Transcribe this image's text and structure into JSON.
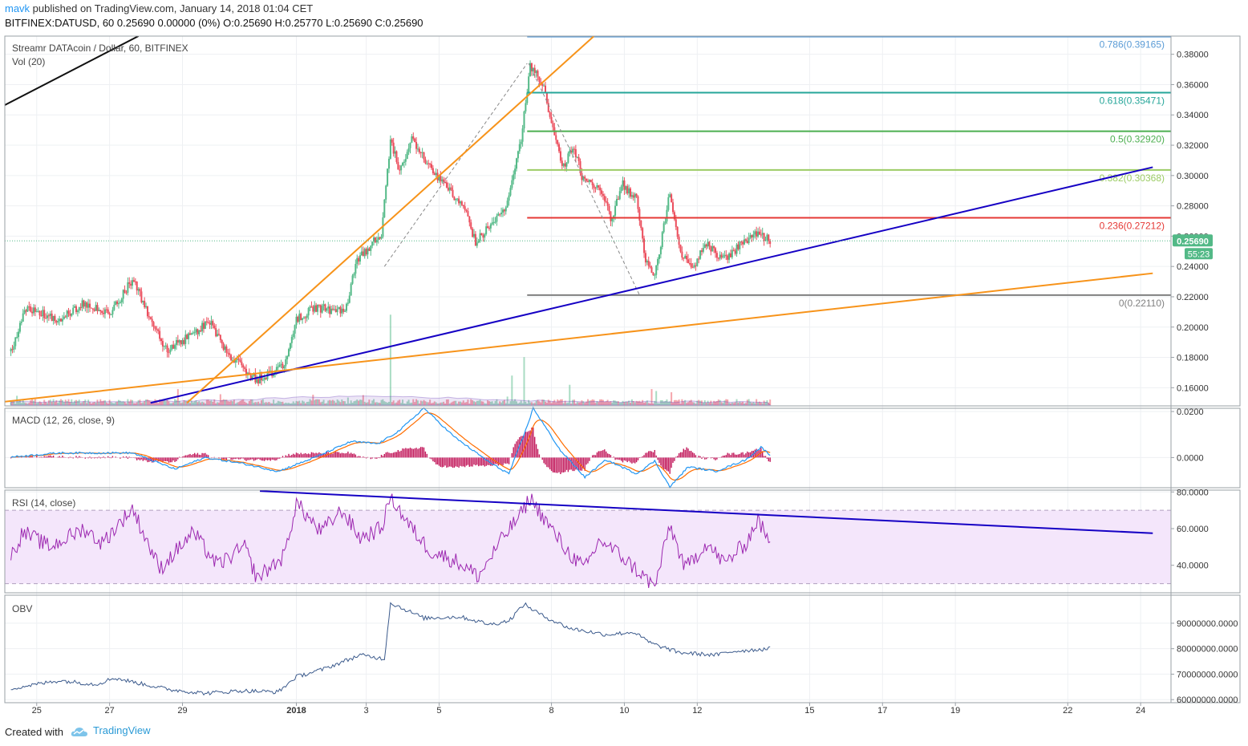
{
  "header": {
    "author": "mavk",
    "published": " published on TradingView.com, January 14, 2018 01:04 CET",
    "ohlc": "BITFINEX:DATUSD, 60  0.25690 0.00000 (0%) O:0.25690 H:0.25770 L:0.25690 C:0.25690"
  },
  "footer": {
    "created_with": "Created with",
    "brand": "TradingView",
    "brand_icon": "tradingview-cloud-icon"
  },
  "colors": {
    "up": "#53b987",
    "down": "#eb4d5c",
    "macd": "#2196f3",
    "signal": "#ff6d00",
    "hist": "#c2185b",
    "rsi": "#9c27b0",
    "rsi_band": "#f4e6fb",
    "obv": "#3b5a8c",
    "trend_blue": "#1500c4",
    "trend_orange": "#f7931a"
  },
  "chart_data": [
    {
      "type": "candlestick",
      "title": "Streamr DATAcoin / Dollar, 60, BITFINEX",
      "subtitle": "Vol (20)",
      "x_ticks": [
        "25",
        "27",
        "29",
        "2018",
        "3",
        "5",
        "8",
        "10",
        "12",
        "15",
        "17",
        "19",
        "22",
        "24"
      ],
      "x_range": [
        "Dec 24 2017",
        "Jan 25 2018"
      ],
      "ylim": [
        0.148,
        0.392
      ],
      "y_ticks": [
        "0.38000",
        "0.36000",
        "0.34000",
        "0.32000",
        "0.30000",
        "0.28000",
        "0.26000",
        "0.24000",
        "0.22000",
        "0.20000",
        "0.18000",
        "0.16000"
      ],
      "last_price": "0.25690",
      "countdown": "55:23",
      "price_path": [
        [
          "2017-12-24 04:00",
          0.184
        ],
        [
          "2017-12-24 14:00",
          0.212
        ],
        [
          "2017-12-25 12:00",
          0.205
        ],
        [
          "2017-12-26 02:00",
          0.215
        ],
        [
          "2017-12-26 22:00",
          0.209
        ],
        [
          "2017-12-27 12:00",
          0.232
        ],
        [
          "2017-12-27 20:00",
          0.214
        ],
        [
          "2017-12-28 10:00",
          0.185
        ],
        [
          "2017-12-28 20:00",
          0.19
        ],
        [
          "2017-12-29 08:00",
          0.198
        ],
        [
          "2017-12-29 14:00",
          0.205
        ],
        [
          "2017-12-30 04:00",
          0.181
        ],
        [
          "2017-12-30 22:00",
          0.165
        ],
        [
          "2017-12-31 16:00",
          0.175
        ],
        [
          "2018-01-01 00:00",
          0.205
        ],
        [
          "2018-01-01 12:00",
          0.213
        ],
        [
          "2018-01-02 08:00",
          0.21
        ],
        [
          "2018-01-02 16:00",
          0.244
        ],
        [
          "2018-01-03 08:00",
          0.262
        ],
        [
          "2018-01-03 14:00",
          0.324
        ],
        [
          "2018-01-03 20:00",
          0.302
        ],
        [
          "2018-01-04 04:00",
          0.325
        ],
        [
          "2018-01-04 20:00",
          0.3
        ],
        [
          "2018-01-05 14:00",
          0.28
        ],
        [
          "2018-01-05 22:00",
          0.256
        ],
        [
          "2018-01-06 18:00",
          0.278
        ],
        [
          "2018-01-07 04:00",
          0.325
        ],
        [
          "2018-01-07 10:00",
          0.372
        ],
        [
          "2018-01-07 18:00",
          0.362
        ],
        [
          "2018-01-08 02:00",
          0.326
        ],
        [
          "2018-01-08 08:00",
          0.305
        ],
        [
          "2018-01-08 14:00",
          0.32
        ],
        [
          "2018-01-08 20:00",
          0.3
        ],
        [
          "2018-01-09 08:00",
          0.29
        ],
        [
          "2018-01-09 16:00",
          0.27
        ],
        [
          "2018-01-09 22:00",
          0.295
        ],
        [
          "2018-01-10 08:00",
          0.285
        ],
        [
          "2018-01-10 14:00",
          0.245
        ],
        [
          "2018-01-10 20:00",
          0.232
        ],
        [
          "2018-01-11 06:00",
          0.29
        ],
        [
          "2018-01-11 12:00",
          0.252
        ],
        [
          "2018-01-11 20:00",
          0.238
        ],
        [
          "2018-01-12 06:00",
          0.255
        ],
        [
          "2018-01-12 16:00",
          0.244
        ],
        [
          "2018-01-13 02:00",
          0.252
        ],
        [
          "2018-01-13 16:00",
          0.262
        ],
        [
          "2018-01-14 00:00",
          0.2569
        ]
      ],
      "fibonacci": [
        {
          "label": "0.786(0.39165)",
          "value": 0.39165,
          "color": "#5b9cd6"
        },
        {
          "label": "0.618(0.35471)",
          "value": 0.35471,
          "color": "#26a69a"
        },
        {
          "label": "0.5(0.32920)",
          "value": 0.3292,
          "color": "#4caf50"
        },
        {
          "label": "0.382(0.30368)",
          "value": 0.30368,
          "color": "#9ccc65"
        },
        {
          "label": "0.236(0.27212)",
          "value": 0.27212,
          "color": "#e53935"
        },
        {
          "label": "0(0.22110)",
          "value": 0.2211,
          "color": "#808080"
        }
      ],
      "fib_start": "2018-01-07 08:00",
      "fib_anchor": [
        [
          "2018-01-07 09:00",
          0.374
        ],
        [
          "2018-01-10 10:00",
          0.2211
        ]
      ],
      "fib_anchor_2": [
        [
          "2018-01-03 10:00",
          0.24
        ],
        [
          "2018-01-07 08:00",
          0.374
        ]
      ],
      "trendlines": [
        {
          "color": "trend_blue",
          "points": [
            [
              "2017-12-28 00:00",
              0.15
            ],
            [
              "2018-01-24 12:00",
              0.3055
            ]
          ]
        },
        {
          "color": "trend_orange",
          "points": [
            [
              "2017-12-24 00:00",
              0.1508
            ],
            [
              "2018-01-24 12:00",
              0.2355
            ]
          ]
        },
        {
          "color": "trend_orange",
          "points": [
            [
              "2017-12-29 00:00",
              0.15
            ],
            [
              "2018-01-09 04:00",
              0.392
            ]
          ]
        },
        {
          "color": "#111111",
          "points": [
            [
              "2017-12-24 00:00",
              0.3465
            ],
            [
              "2017-12-27 16:00",
              0.392
            ]
          ]
        }
      ],
      "volume_spikes": [
        [
          "2018-01-03 14:00",
          0.98
        ],
        [
          "2018-01-07 06:00",
          0.52
        ],
        [
          "2018-01-06 22:00",
          0.32
        ],
        [
          "2018-01-08 12:00",
          0.22
        ]
      ]
    },
    {
      "type": "line",
      "title": "MACD (12, 26, close, 9)",
      "ylim": [
        -0.0131,
        0.0214
      ],
      "y_ticks": [
        "0.0200",
        "0.0000"
      ],
      "macd_path": [
        [
          "2017-12-24 00:00",
          0.0
        ],
        [
          "2017-12-25 12:00",
          0.002
        ],
        [
          "2017-12-27 12:00",
          0.002
        ],
        [
          "2017-12-28 16:00",
          -0.005
        ],
        [
          "2017-12-29 12:00",
          0.0
        ],
        [
          "2017-12-30 12:00",
          -0.0025
        ],
        [
          "2017-12-31 12:00",
          -0.006
        ],
        [
          "2018-01-01 12:00",
          0.0
        ],
        [
          "2018-01-02 12:00",
          0.007
        ],
        [
          "2018-01-03 06:00",
          0.006
        ],
        [
          "2018-01-03 20:00",
          0.0118
        ],
        [
          "2018-01-04 12:00",
          0.0215
        ],
        [
          "2018-01-05 08:00",
          0.009
        ],
        [
          "2018-01-06 08:00",
          -0.0025
        ],
        [
          "2018-01-06 20:00",
          -0.007
        ],
        [
          "2018-01-07 06:00",
          0.01
        ],
        [
          "2018-01-07 12:00",
          0.0215
        ],
        [
          "2018-01-08 06:00",
          0.003
        ],
        [
          "2018-01-08 22:00",
          -0.0085
        ],
        [
          "2018-01-09 12:00",
          -0.001
        ],
        [
          "2018-01-10 08:00",
          -0.007
        ],
        [
          "2018-01-10 20:00",
          -0.0015
        ],
        [
          "2018-01-11 06:00",
          -0.0128
        ],
        [
          "2018-01-11 18:00",
          -0.004
        ],
        [
          "2018-01-12 12:00",
          -0.006
        ],
        [
          "2018-01-13 08:00",
          -0.001
        ],
        [
          "2018-01-13 18:00",
          0.0045
        ],
        [
          "2018-01-14 00:00",
          0.0012
        ]
      ]
    },
    {
      "type": "line",
      "title": "RSI (14, close)",
      "ylim": [
        25,
        81
      ],
      "y_ticks": [
        "80.0000",
        "60.0000",
        "40.0000"
      ],
      "band": [
        30,
        70
      ],
      "rsi_path": [
        [
          "2017-12-24 00:00",
          38
        ],
        [
          "2017-12-24 12:00",
          58
        ],
        [
          "2017-12-25 06:00",
          50
        ],
        [
          "2017-12-26 04:00",
          60
        ],
        [
          "2017-12-26 16:00",
          52
        ],
        [
          "2017-12-27 12:00",
          71
        ],
        [
          "2017-12-28 06:00",
          38
        ],
        [
          "2017-12-29 04:00",
          58
        ],
        [
          "2017-12-29 20:00",
          40
        ],
        [
          "2017-12-30 14:00",
          50
        ],
        [
          "2017-12-30 22:00",
          33
        ],
        [
          "2017-12-31 16:00",
          45
        ],
        [
          "2018-01-01 00:00",
          74
        ],
        [
          "2018-01-01 16:00",
          58
        ],
        [
          "2018-01-02 06:00",
          70
        ],
        [
          "2018-01-02 18:00",
          55
        ],
        [
          "2018-01-03 08:00",
          60
        ],
        [
          "2018-01-03 14:00",
          78
        ],
        [
          "2018-01-04 02:00",
          62
        ],
        [
          "2018-01-04 16:00",
          48
        ],
        [
          "2018-01-05 10:00",
          42
        ],
        [
          "2018-01-06 00:00",
          34
        ],
        [
          "2018-01-06 16:00",
          55
        ],
        [
          "2018-01-07 04:00",
          68
        ],
        [
          "2018-01-07 10:00",
          77
        ],
        [
          "2018-01-07 22:00",
          62
        ],
        [
          "2018-01-08 10:00",
          48
        ],
        [
          "2018-01-08 22:00",
          38
        ],
        [
          "2018-01-09 08:00",
          54
        ],
        [
          "2018-01-09 22:00",
          45
        ],
        [
          "2018-01-10 14:00",
          33
        ],
        [
          "2018-01-10 20:00",
          28
        ],
        [
          "2018-01-11 06:00",
          62
        ],
        [
          "2018-01-11 16:00",
          38
        ],
        [
          "2018-01-12 06:00",
          52
        ],
        [
          "2018-01-12 18:00",
          41
        ],
        [
          "2018-01-13 08:00",
          52
        ],
        [
          "2018-01-13 16:00",
          65
        ],
        [
          "2018-01-13 22:00",
          55
        ],
        [
          "2018-01-14 00:00",
          49
        ]
      ],
      "divergence_line": [
        [
          "2017-12-31 00:00",
          80.5
        ],
        [
          "2018-01-24 12:00",
          57.5
        ]
      ]
    },
    {
      "type": "line",
      "title": "OBV",
      "ylim": [
        58800000,
        101000000
      ],
      "y_ticks": [
        "90000000.0000",
        "80000000.0000",
        "70000000.0000",
        "60000000.0000"
      ],
      "obv_path": [
        [
          "2017-12-24 00:00",
          64000000
        ],
        [
          "2017-12-25 12:00",
          67500000
        ],
        [
          "2017-12-26 12:00",
          66000000
        ],
        [
          "2017-12-27 00:00",
          68500000
        ],
        [
          "2017-12-28 12:00",
          64000000
        ],
        [
          "2017-12-29 12:00",
          62500000
        ],
        [
          "2017-12-30 12:00",
          63500000
        ],
        [
          "2017-12-31 12:00",
          63000000
        ],
        [
          "2018-01-01 00:00",
          69000000
        ],
        [
          "2018-01-01 18:00",
          72000000
        ],
        [
          "2018-01-02 18:00",
          77500000
        ],
        [
          "2018-01-03 10:00",
          76000000
        ],
        [
          "2018-01-03 14:00",
          98000000
        ],
        [
          "2018-01-04 12:00",
          92000000
        ],
        [
          "2018-01-05 12:00",
          92500000
        ],
        [
          "2018-01-06 08:00",
          89500000
        ],
        [
          "2018-01-06 20:00",
          91000000
        ],
        [
          "2018-01-07 06:00",
          97500000
        ],
        [
          "2018-01-07 18:00",
          93000000
        ],
        [
          "2018-01-08 12:00",
          88000000
        ],
        [
          "2018-01-09 12:00",
          85500000
        ],
        [
          "2018-01-10 06:00",
          86500000
        ],
        [
          "2018-01-10 18:00",
          82000000
        ],
        [
          "2018-01-11 12:00",
          78500000
        ],
        [
          "2018-01-12 12:00",
          77500000
        ],
        [
          "2018-01-13 00:00",
          79000000
        ],
        [
          "2018-01-14 00:00",
          80000000
        ]
      ]
    }
  ]
}
